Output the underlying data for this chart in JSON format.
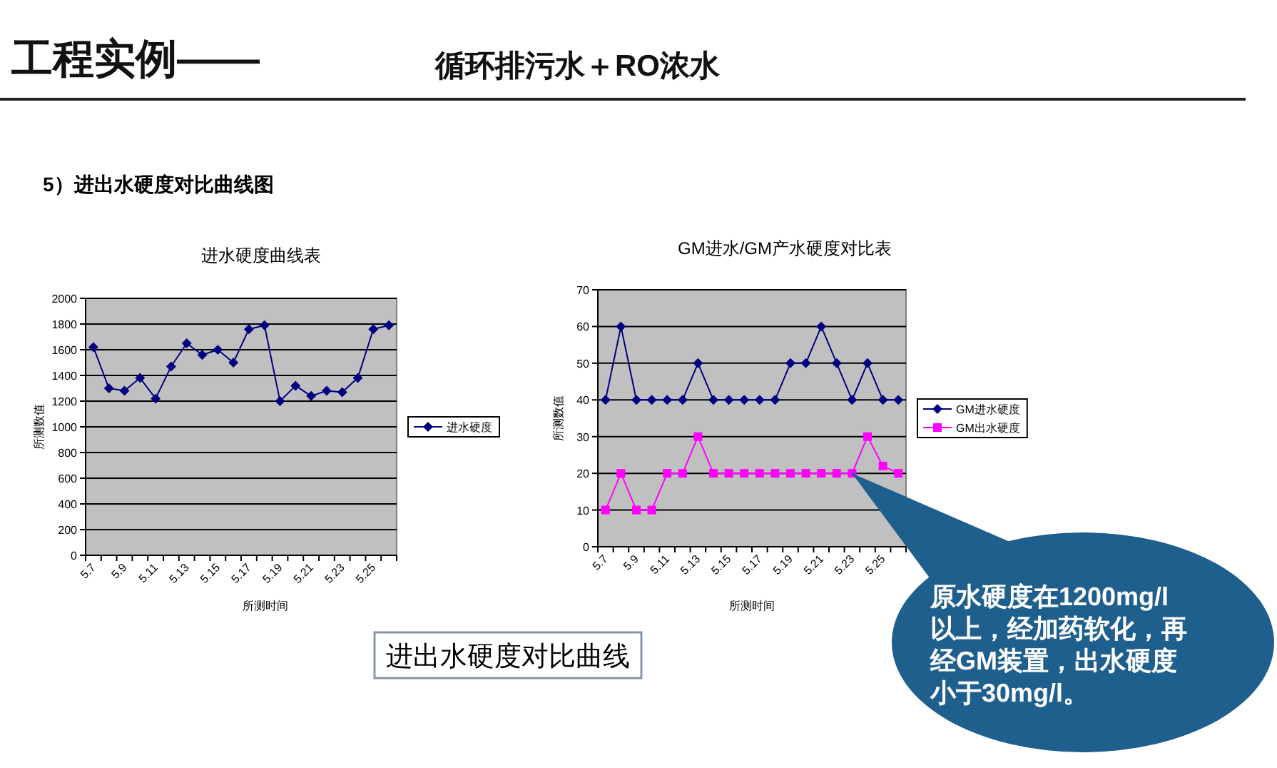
{
  "chart_data": [
    {
      "type": "other",
      "title": "工程实例——",
      "subtitle": "循环排污水＋RO浓水",
      "annotations": [
        "5）进出水硬度对比曲线图",
        "进出水硬度对比曲线"
      ]
    },
    {
      "type": "line",
      "title": "进水硬度曲线表",
      "xlabel": "所测时间",
      "ylabel": "所测数值",
      "categories": [
        "5.7",
        null,
        "5.9",
        null,
        "5.11",
        null,
        "5.13",
        null,
        "5.15",
        null,
        "5.17",
        null,
        "5.19",
        null,
        "5.21",
        null,
        "5.23",
        null,
        "5.25",
        null
      ],
      "series": [
        {
          "name": "进水硬度",
          "color": "#000080",
          "values": [
            1620,
            1300,
            1280,
            1380,
            1220,
            1470,
            1650,
            1560,
            1600,
            1500,
            1760,
            1790,
            1200,
            1320,
            1240,
            1280,
            1270,
            1380,
            1760,
            1790
          ]
        }
      ],
      "ylim": [
        0,
        2000
      ],
      "yticks": [
        0,
        200,
        400,
        600,
        800,
        1000,
        1200,
        1400,
        1600,
        1800,
        2000
      ],
      "grid": "y",
      "legend": "right",
      "marker": "diamond"
    },
    {
      "type": "line",
      "title": "GM进水/GM产水硬度对比表",
      "xlabel": "所测时间",
      "ylabel": "所测数值",
      "categories": [
        "5.7",
        null,
        "5.9",
        null,
        "5.11",
        null,
        "5.13",
        null,
        "5.15",
        null,
        "5.17",
        null,
        "5.19",
        null,
        "5.21",
        null,
        "5.23",
        null,
        "5.25",
        null
      ],
      "series": [
        {
          "name": "GM进水硬度",
          "color": "#000080",
          "marker": "diamond",
          "values": [
            40,
            60,
            40,
            40,
            40,
            40,
            50,
            40,
            40,
            40,
            40,
            40,
            50,
            50,
            60,
            50,
            40,
            50,
            40,
            40
          ]
        },
        {
          "name": "GM出水硬度",
          "color": "#ff00ff",
          "marker": "square",
          "values": [
            10,
            20,
            10,
            10,
            20,
            20,
            30,
            20,
            20,
            20,
            20,
            20,
            20,
            20,
            20,
            20,
            20,
            30,
            22,
            20
          ]
        }
      ],
      "ylim": [
        0,
        70
      ],
      "yticks": [
        0,
        10,
        20,
        30,
        40,
        50,
        60,
        70
      ],
      "grid": "y",
      "legend": "right",
      "annotations": [
        {
          "text": "原水硬度在1200mg/l以上，经加药软化，再经GM装置，出水硬度小于30mg/l。",
          "x": "5.23",
          "y": 20
        }
      ]
    }
  ]
}
